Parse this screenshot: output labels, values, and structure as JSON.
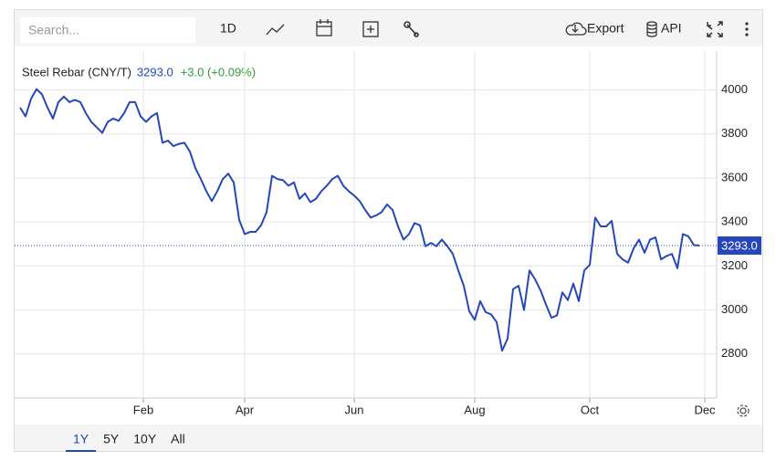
{
  "toolbar": {
    "search": "Search...",
    "interval": "1D",
    "export": "Export",
    "api": "API"
  },
  "ranges": [
    "1Y",
    "5Y",
    "10Y",
    "All"
  ],
  "chart_data": {
    "type": "line",
    "title": "Steel Rebar (CNY/T)",
    "price": {
      "value": 3293,
      "label": "3293.0"
    },
    "change": "+3.0 (+0.09%)",
    "color": "#2747b8",
    "grid": true,
    "x": [
      0,
      1,
      2,
      3,
      4,
      5,
      6,
      7,
      8,
      9,
      10,
      11,
      12,
      13,
      14,
      15,
      16,
      17,
      18,
      19,
      20,
      21,
      22,
      23,
      24,
      25,
      26,
      27,
      28,
      29,
      30,
      31,
      32,
      33,
      34,
      35,
      36,
      37,
      38,
      39,
      40,
      41,
      42,
      43,
      44,
      45,
      46,
      47,
      48,
      49,
      50,
      51,
      52,
      53,
      54,
      55,
      56,
      57,
      58,
      59,
      60,
      61,
      62,
      63,
      64,
      65,
      66,
      67,
      68,
      69,
      70,
      71,
      72,
      73,
      74,
      75,
      76,
      77,
      78,
      79,
      80,
      81,
      82,
      83,
      84,
      85,
      86,
      87,
      88,
      89,
      90,
      91,
      92,
      93,
      94,
      95,
      96,
      97,
      98,
      99,
      100,
      101,
      102,
      103,
      104,
      105,
      106,
      107,
      108,
      109,
      110,
      111,
      112,
      113,
      114,
      115,
      116,
      117,
      118,
      119,
      120,
      121,
      122,
      123,
      124
    ],
    "values": [
      3920,
      3880,
      3960,
      4004,
      3980,
      3920,
      3870,
      3945,
      3970,
      3945,
      3955,
      3945,
      3895,
      3855,
      3830,
      3805,
      3855,
      3870,
      3860,
      3895,
      3945,
      3945,
      3880,
      3855,
      3880,
      3895,
      3760,
      3770,
      3745,
      3755,
      3760,
      3720,
      3645,
      3595,
      3540,
      3495,
      3540,
      3595,
      3620,
      3580,
      3410,
      3345,
      3355,
      3355,
      3385,
      3445,
      3610,
      3595,
      3590,
      3565,
      3580,
      3505,
      3530,
      3490,
      3505,
      3540,
      3565,
      3595,
      3610,
      3565,
      3540,
      3520,
      3495,
      3455,
      3420,
      3430,
      3445,
      3480,
      3455,
      3380,
      3320,
      3345,
      3395,
      3385,
      3290,
      3305,
      3290,
      3320,
      3290,
      3255,
      3180,
      3110,
      2995,
      2955,
      3040,
      2990,
      2980,
      2945,
      2815,
      2870,
      3095,
      3110,
      3000,
      3180,
      3140,
      3090,
      3025,
      2965,
      2975,
      3080,
      3045,
      3120,
      3040,
      3180,
      3205,
      3420,
      3380,
      3380,
      3405,
      3255,
      3230,
      3215,
      3280,
      3320,
      3260,
      3320,
      3330,
      3230,
      3245,
      3255,
      3190,
      3345,
      3335,
      3295,
      3293
    ],
    "xlim": [
      0,
      127
    ],
    "xticks": [
      {
        "value": 22.5,
        "label": "Feb"
      },
      {
        "value": 41,
        "label": "Apr"
      },
      {
        "value": 61,
        "label": "Jun"
      },
      {
        "value": 83,
        "label": "Aug"
      },
      {
        "value": 104,
        "label": "Oct"
      },
      {
        "value": 125,
        "label": "Dec"
      }
    ],
    "ylim": [
      2600,
      4160
    ],
    "yticks": [
      2800,
      3000,
      3200,
      3400,
      3600,
      3800,
      4000
    ]
  }
}
